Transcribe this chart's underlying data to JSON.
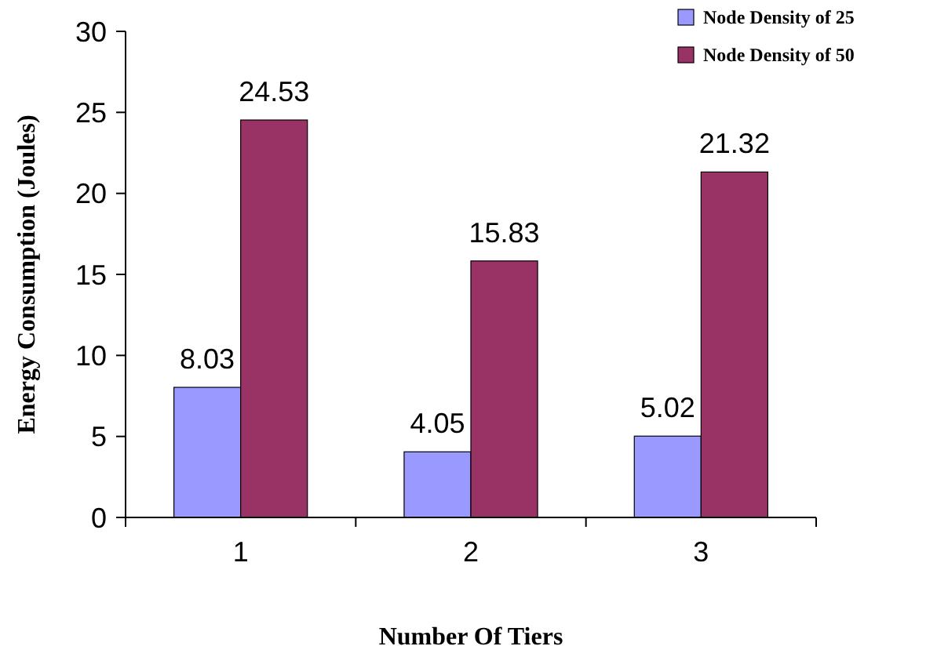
{
  "chart_data": {
    "type": "bar",
    "xlabel": "Number Of Tiers",
    "ylabel": "Energy Consumption (Joules)",
    "categories": [
      "1",
      "2",
      "3"
    ],
    "series": [
      {
        "name": "Node Density of 25",
        "color": "#9999ff",
        "values": [
          8.03,
          4.05,
          5.02
        ]
      },
      {
        "name": "Node Density of 50",
        "color": "#993366",
        "values": [
          24.53,
          15.83,
          21.32
        ]
      }
    ],
    "ylim": [
      0,
      30
    ],
    "yticks": [
      0,
      5,
      10,
      15,
      20,
      25,
      30
    ],
    "data_labels": true,
    "legend": "top right",
    "grid": false
  }
}
